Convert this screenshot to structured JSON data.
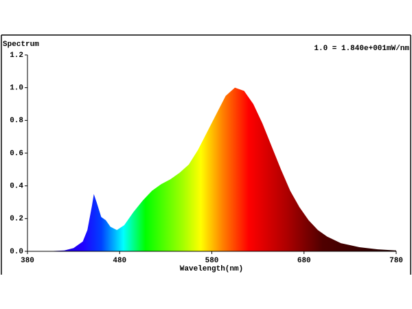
{
  "chart_data": {
    "type": "area",
    "y_label": "Spectrum",
    "annotation": "1.0 = 1.840e+001mW/nm",
    "x_label": "Wavelength(nm)",
    "x": [
      380,
      400,
      420,
      430,
      440,
      445,
      450,
      452,
      455,
      460,
      465,
      470,
      477,
      485,
      495,
      505,
      515,
      525,
      535,
      545,
      555,
      565,
      575,
      585,
      595,
      605,
      615,
      625,
      635,
      645,
      655,
      665,
      675,
      685,
      695,
      705,
      720,
      740,
      760,
      780
    ],
    "values": [
      0,
      0,
      0.005,
      0.02,
      0.06,
      0.13,
      0.28,
      0.35,
      0.3,
      0.21,
      0.19,
      0.15,
      0.13,
      0.16,
      0.24,
      0.31,
      0.37,
      0.41,
      0.44,
      0.48,
      0.53,
      0.62,
      0.73,
      0.84,
      0.95,
      1.0,
      0.98,
      0.9,
      0.78,
      0.64,
      0.5,
      0.37,
      0.27,
      0.19,
      0.13,
      0.09,
      0.05,
      0.025,
      0.012,
      0.005
    ],
    "xlim": [
      380,
      780
    ],
    "xticks": [
      380,
      480,
      580,
      680,
      780
    ],
    "ylim": [
      0,
      1.2
    ],
    "yticks": [
      {
        "value": 0,
        "label": "0.0"
      },
      0.2,
      0.4,
      0.6,
      0.8,
      {
        "value": 1,
        "label": "1.0"
      },
      1.2
    ]
  }
}
